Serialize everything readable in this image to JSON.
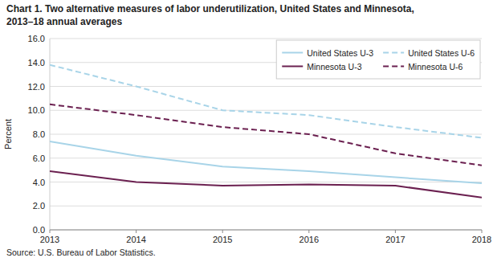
{
  "chart_data": {
    "type": "line",
    "title": "Chart 1. Two alternative measures of labor underutilization, United States and Minnesota,",
    "subtitle": "2013–18  annual averages",
    "y_label": "Percent",
    "source": "Source: U.S. Bureau of Labor Statistics.",
    "x": [
      2013,
      2014,
      2015,
      2016,
      2017,
      2018
    ],
    "xlim": [
      2013,
      2018
    ],
    "xticks": [
      2013,
      2014,
      2015,
      2016,
      2017,
      2018
    ],
    "ylim": [
      0.0,
      16.0
    ],
    "yticks": [
      {
        "value": 0,
        "label": "0.0"
      },
      {
        "value": 2,
        "label": "2.0"
      },
      {
        "value": 4,
        "label": "4.0"
      },
      {
        "value": 6,
        "label": "6.0"
      },
      {
        "value": 8,
        "label": "8.0"
      },
      {
        "value": 10,
        "label": "10.0"
      },
      {
        "value": 12,
        "label": "12.0"
      },
      {
        "value": 14,
        "label": "14.0"
      },
      {
        "value": 16,
        "label": "16.0"
      }
    ],
    "grid": true,
    "legend": "upper right",
    "series": [
      {
        "name": "United States  U-3",
        "color": "#a8d4e8",
        "line_style": "solid",
        "values": [
          7.4,
          6.2,
          5.3,
          4.9,
          4.4,
          3.9
        ]
      },
      {
        "name": "United States  U-6",
        "color": "#a8d4e8",
        "line_style": "dashed",
        "values": [
          13.8,
          12.0,
          10.0,
          9.6,
          8.6,
          7.7
        ]
      },
      {
        "name": "Minnesota  U-3",
        "color": "#6b2050",
        "line_style": "solid",
        "values": [
          4.9,
          4.0,
          3.7,
          3.8,
          3.7,
          2.7
        ]
      },
      {
        "name": "Minnesota  U-6",
        "color": "#6b2050",
        "line_style": "dashed",
        "values": [
          10.5,
          9.6,
          8.6,
          8.0,
          6.4,
          5.4
        ]
      }
    ]
  }
}
